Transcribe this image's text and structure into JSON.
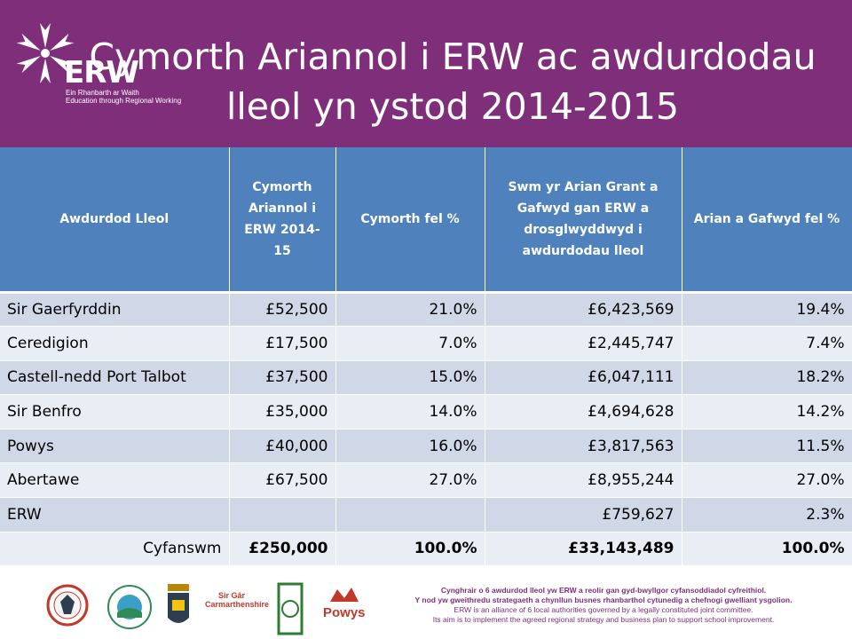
{
  "header": {
    "title": "Cymorth Ariannol i ERW ac awdurdodau lleol yn ystod 2014-2015",
    "logo": {
      "name": "ERW",
      "subtitle_line1": "Ein Rhanbarth ar Waith",
      "subtitle_line2": "Education through Regional Working"
    }
  },
  "table": {
    "columns": [
      "Awdurdod Lleol",
      "Cymorth Ariannol i ERW 2014-15",
      "Cymorth fel %",
      "Swm yr Arian Grant a Gafwyd gan ERW a drosglwyddwyd i awdurdodau lleol",
      "Arian a Gafwyd fel %"
    ],
    "rows": [
      [
        "Sir Gaerfyrddin",
        "£52,500",
        "21.0%",
        "£6,423,569",
        "19.4%"
      ],
      [
        "Ceredigion",
        "£17,500",
        "7.0%",
        "£2,445,747",
        "7.4%"
      ],
      [
        "Castell-nedd Port Talbot",
        "£37,500",
        "15.0%",
        "£6,047,111",
        "18.2%"
      ],
      [
        "Sir Benfro",
        "£35,000",
        "14.0%",
        "£4,694,628",
        "14.2%"
      ],
      [
        "Powys",
        "£40,000",
        "16.0%",
        "£3,817,563",
        "11.5%"
      ],
      [
        "Abertawe",
        "£67,500",
        "27.0%",
        "£8,955,244",
        "27.0%"
      ],
      [
        "ERW",
        "",
        "",
        "£759,627",
        "2.3%"
      ]
    ],
    "total": [
      "Cyfanswm",
      "£250,000",
      "100.0%",
      "£33,143,489",
      "100.0%"
    ]
  },
  "footer": {
    "crests": [
      {
        "icon": "swansea-crest-icon",
        "color": "#c0392b"
      },
      {
        "icon": "neath-port-talbot-crest-icon",
        "color": "#2e8b57"
      },
      {
        "icon": "pembrokeshire-crest-icon",
        "color": "#2c3e50"
      },
      {
        "icon": "carmarthenshire-logo-icon",
        "color": "#c0392b"
      },
      {
        "icon": "ceredigion-crest-icon",
        "color": "#2e7d32"
      },
      {
        "icon": "powys-logo-icon",
        "color": "#c0392b"
      }
    ],
    "carmarthenshire_text": "Sir Gâr Carmarthenshire",
    "powys_text": "Powys",
    "text_cy_1": "Cynghrair o 6 awdurdod lleol yw ERW a reolir gan gyd-bwyllgor cyfansoddiadol cyfreithiol.",
    "text_cy_2": "Y nod yw gweithredu strategaeth a chynllun busnes rhanbarthol cytunedig a chefnogi gwelliant ysgolion.",
    "text_en_1": "ERW is an alliance of 6 local authorities governed by a legally constituted joint committee.",
    "text_en_2": "Its aim is to implement the agreed regional strategy and business plan to support school improvement."
  },
  "colors": {
    "header_bg": "#7f2f7a",
    "table_header_bg": "#4f81bd",
    "row_odd_bg": "#d0d8e8",
    "row_even_bg": "#e9edf4"
  }
}
